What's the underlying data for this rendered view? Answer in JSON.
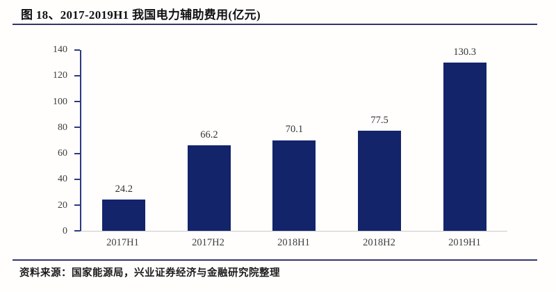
{
  "figure": {
    "title": "图 18、2017-2019H1 我国电力辅助费用(亿元)",
    "source": "资料来源：国家能源局，兴业证券经济与金融研究院整理"
  },
  "chart_data": {
    "type": "bar",
    "title": "图 18、2017-2019H1 我国电力辅助费用(亿元)",
    "categories": [
      "2017H1",
      "2017H2",
      "2018H1",
      "2018H2",
      "2019H1"
    ],
    "values": [
      24.2,
      66.2,
      70.1,
      77.5,
      130.3
    ],
    "xlabel": "",
    "ylabel": "",
    "ylim": [
      0,
      140
    ],
    "yticks": [
      0,
      20,
      40,
      60,
      80,
      100,
      120,
      140
    ],
    "grid": false,
    "legend_position": "none",
    "bar_color": "#13246b",
    "axis_color": "#2b3a7e",
    "baseline_color": "#c9c9c9",
    "rule_color": "#33356b",
    "tick_label_color": "#3d3d3d",
    "value_label_color": "#333333"
  }
}
